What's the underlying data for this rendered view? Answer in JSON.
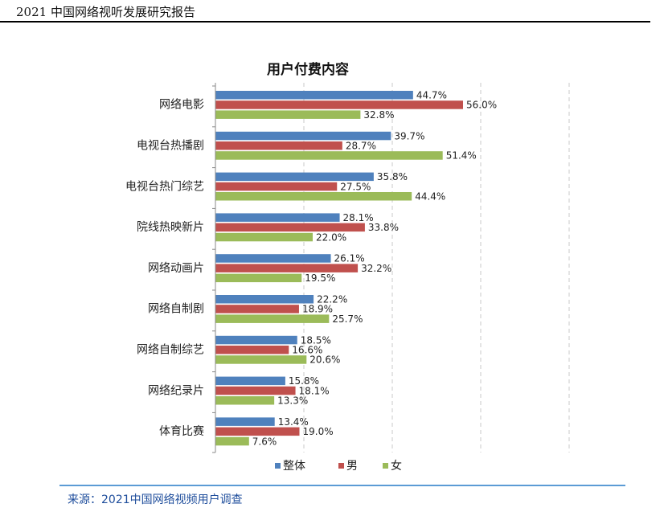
{
  "header": {
    "title": "2021 中国网络视听发展研究报告"
  },
  "footer": {
    "source": "来源：2021中国网络视频用户调查"
  },
  "chart_data": {
    "type": "bar",
    "orientation": "horizontal",
    "title": "用户付费内容",
    "categories": [
      "网络电影",
      "电视台热播剧",
      "电视台热门综艺",
      "院线热映新片",
      "网络动画片",
      "网络自制剧",
      "网络自制综艺",
      "网络纪录片",
      "体育比赛"
    ],
    "series": [
      {
        "name": "整体",
        "color": "#4f81bd",
        "values": [
          44.7,
          39.7,
          35.8,
          28.1,
          26.1,
          22.2,
          18.5,
          15.8,
          13.4
        ],
        "labels": [
          "44.7%",
          "39.7%",
          "35.8%",
          "28.1%",
          "26.1%",
          "22.2%",
          "18.5%",
          "15.8%",
          "13.4%"
        ]
      },
      {
        "name": "男",
        "color": "#c0504d",
        "values": [
          56.0,
          28.7,
          27.5,
          33.8,
          32.2,
          18.9,
          16.6,
          18.1,
          19.0
        ],
        "labels": [
          "56.0%",
          "28.7%",
          "27.5%",
          "33.8%",
          "32.2%",
          "18.9%",
          "16.6%",
          "18.1%",
          "19.0%"
        ]
      },
      {
        "name": "女",
        "color": "#9bbb59",
        "values": [
          32.8,
          51.4,
          44.4,
          22.0,
          19.5,
          25.7,
          20.6,
          13.3,
          7.6
        ],
        "labels": [
          "32.8%",
          "51.4%",
          "44.4%",
          "22.0%",
          "19.5%",
          "25.7%",
          "20.6%",
          "13.3%",
          "7.6%"
        ]
      }
    ],
    "xlim": [
      0,
      80
    ],
    "grid": true,
    "legend": "bottom"
  }
}
